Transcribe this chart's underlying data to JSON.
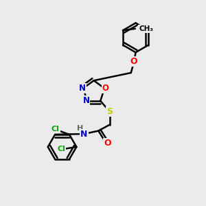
{
  "bg_color": "#ebebeb",
  "bond_color": "#000000",
  "bond_width": 1.8,
  "atom_colors": {
    "C": "#000000",
    "N": "#0000cc",
    "O": "#ff0000",
    "S": "#cccc00",
    "Cl": "#00aa00",
    "H": "#666666"
  },
  "font_size": 9,
  "fig_size": [
    3.0,
    3.0
  ],
  "dpi": 100,
  "xlim": [
    0,
    10
  ],
  "ylim": [
    0,
    10
  ]
}
